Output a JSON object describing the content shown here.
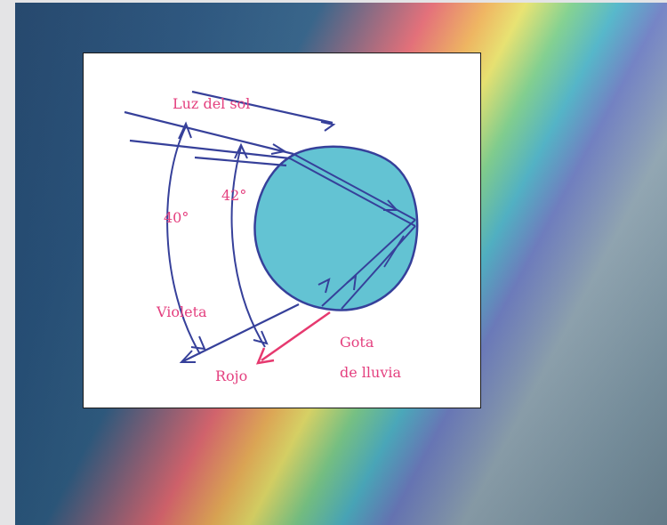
{
  "figure": {
    "label_sunlight": "Luz del sol",
    "angle_violet": "40°",
    "angle_red": "42°",
    "label_violet": "Violeta",
    "label_red": "Rojo",
    "label_drop_line1": "Gota",
    "label_drop_line2": "de lluvia"
  },
  "colors": {
    "drop_fill": "#63c3d3",
    "ray_stroke": "#36409a",
    "label_text": "#e4407f",
    "red_ray": "#e6396f"
  }
}
